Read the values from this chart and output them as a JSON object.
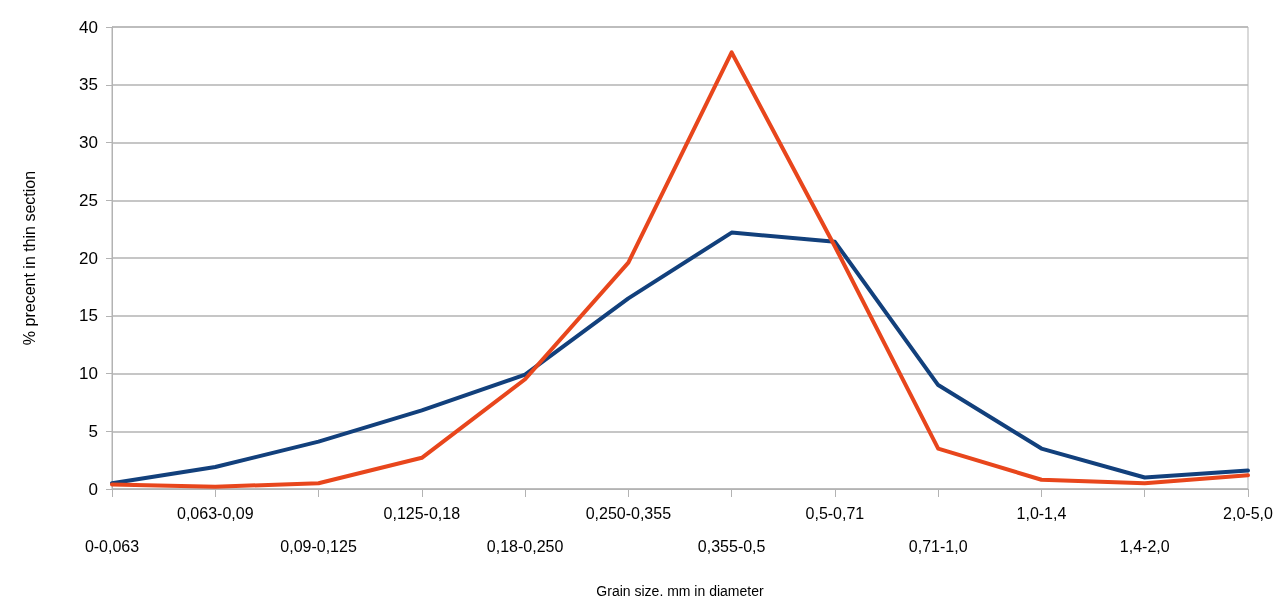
{
  "chart_data": {
    "type": "line",
    "xlabel": "Grain size. mm in diameter",
    "ylabel": "% precent in thin section",
    "categories": [
      "0-0,063",
      "0,063-0,09",
      "0,09-0,125",
      "0,125-0,18",
      "0,18-0,250",
      "0,250-0,355",
      "0,355-0,5",
      "0,5-0,71",
      "0,71-1,0",
      "1,0-1,4",
      "1,4-2,0",
      "2,0-5,0"
    ],
    "series": [
      {
        "color": "#12407c",
        "values": [
          0.5,
          1.9,
          4.1,
          6.8,
          9.9,
          16.5,
          22.2,
          21.4,
          9.0,
          3.5,
          1.0,
          1.6
        ]
      },
      {
        "color": "#e8461c",
        "values": [
          0.4,
          0.2,
          0.5,
          2.7,
          9.5,
          19.6,
          37.8,
          21.0,
          3.5,
          0.8,
          0.5,
          1.2
        ]
      }
    ],
    "ylim": [
      0,
      40
    ],
    "yticks": [
      0,
      5,
      10,
      15,
      20,
      25,
      30,
      35,
      40
    ],
    "grid": "y",
    "marker": "none",
    "line_style": "solid"
  }
}
